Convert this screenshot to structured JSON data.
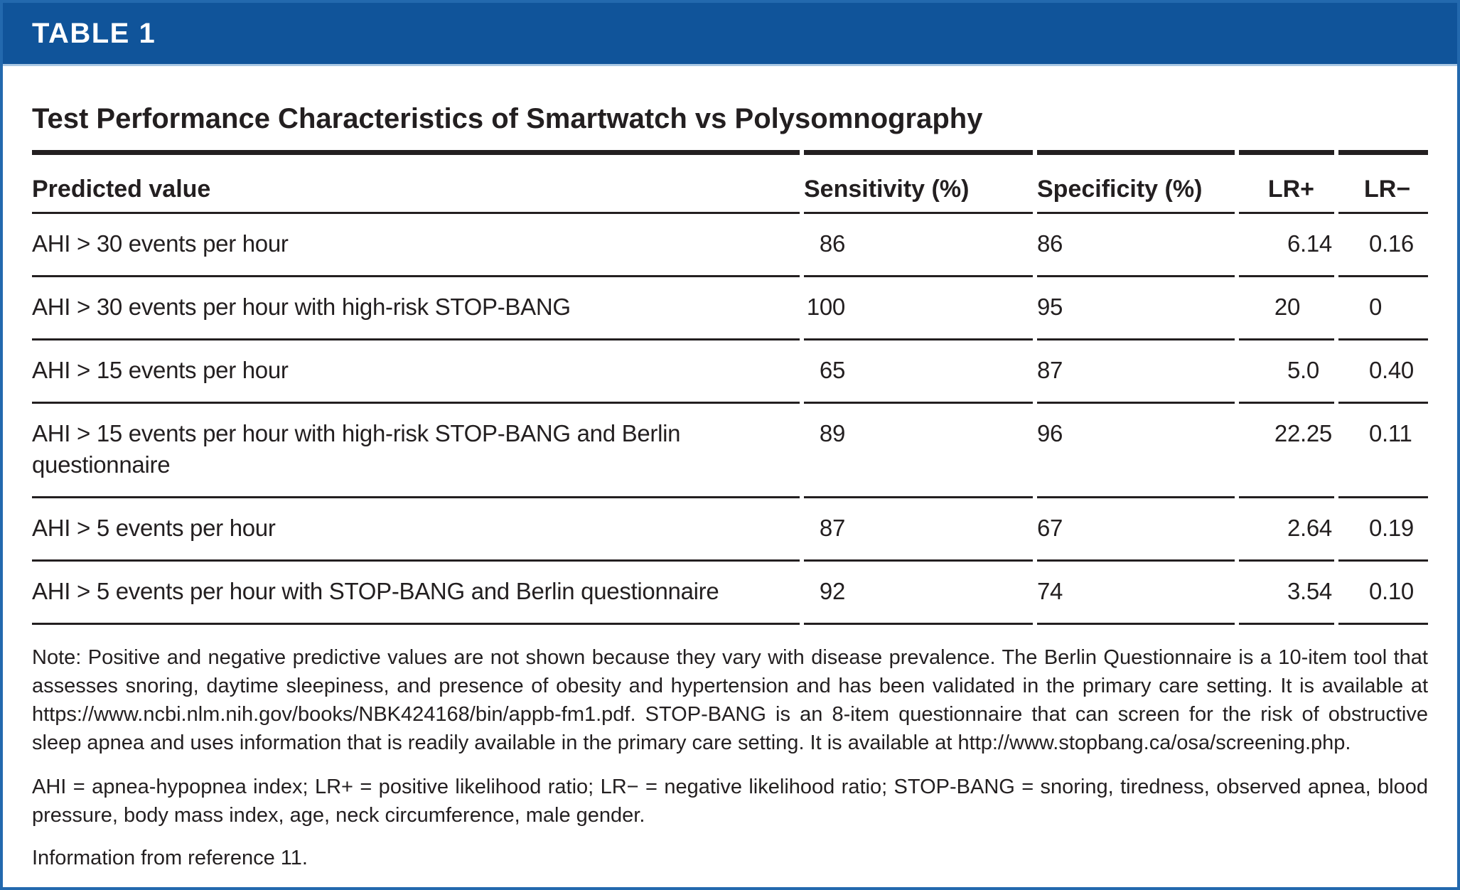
{
  "header": {
    "label": "TABLE 1",
    "title": "Test Performance Characteristics of Smartwatch vs Polysomnography"
  },
  "table": {
    "columns": [
      "Predicted value",
      "Sensitivity (%)",
      "Specificity (%)",
      "LR+",
      "LR−"
    ],
    "rows": [
      {
        "predicted_value": "AHI > 30 events per hour",
        "sensitivity": "86",
        "specificity": "86",
        "lr_plus": "6.14",
        "lr_minus": "0.16"
      },
      {
        "predicted_value": "AHI > 30 events per hour with high-risk STOP-BANG",
        "sensitivity": "100",
        "specificity": "95",
        "lr_plus": "20",
        "lr_minus": "0"
      },
      {
        "predicted_value": "AHI > 15 events per hour",
        "sensitivity": "65",
        "specificity": "87",
        "lr_plus": "5.0",
        "lr_minus": "0.40"
      },
      {
        "predicted_value": "AHI > 15 events per hour with high-risk STOP-BANG and Berlin questionnaire",
        "sensitivity": "89",
        "specificity": "96",
        "lr_plus": "22.25",
        "lr_minus": "0.11"
      },
      {
        "predicted_value": "AHI > 5 events per hour",
        "sensitivity": "87",
        "specificity": "67",
        "lr_plus": "2.64",
        "lr_minus": "0.19"
      },
      {
        "predicted_value": "AHI > 5 events per hour with STOP-BANG and Berlin questionnaire",
        "sensitivity": "92",
        "specificity": "74",
        "lr_plus": "3.54",
        "lr_minus": "0.10"
      }
    ]
  },
  "notes": {
    "note": "Note: Positive and negative predictive values are not shown because they vary with disease prevalence. The Berlin Questionnaire is a 10-item tool that assesses snoring, daytime sleepiness, and presence of obesity and hypertension and has been validated in the primary care setting. It is available at https://www.ncbi.nlm.nih.gov/books/NBK424168/bin/appb-fm1.pdf. STOP-BANG is an 8-item questionnaire that can screen for the risk of obstructive sleep apnea and uses information that is readily available in the primary care setting. It is available at http://www.stopbang.ca/osa/screening.php.",
    "abbreviations": "AHI = apnea-hypopnea index; LR+ = positive likelihood ratio; LR− = negative likelihood ratio; STOP-BANG = snoring, tiredness, observed apnea, blood pressure, body mass index, age, neck circumference, male gender.",
    "source": "Information from reference  11."
  },
  "colors": {
    "header_bar_blue": "#10549a",
    "page_border_blue": "#2369ae",
    "divider_light_blue": "#aac8e4",
    "text_ink": "#231f20"
  }
}
